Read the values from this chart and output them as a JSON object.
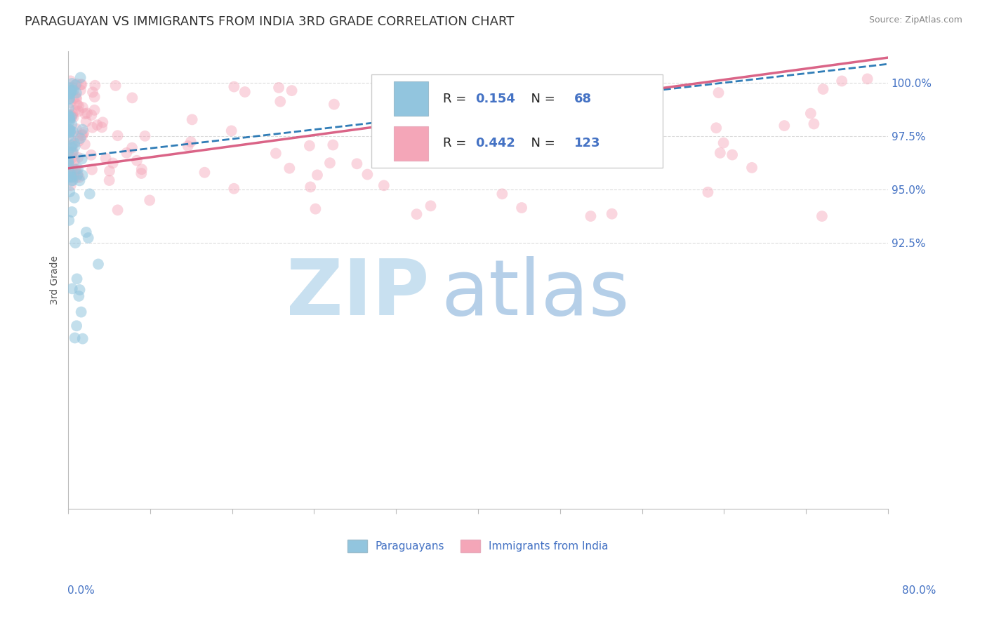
{
  "title": "PARAGUAYAN VS IMMIGRANTS FROM INDIA 3RD GRADE CORRELATION CHART",
  "source_text": "Source: ZipAtlas.com",
  "blue_label": "Paraguayans",
  "pink_label": "Immigrants from India",
  "blue_color": "#92c5de",
  "pink_color": "#f4a6b8",
  "blue_trend_color": "#1a6faf",
  "pink_trend_color": "#d6537a",
  "blue_R": 0.154,
  "blue_N": 68,
  "pink_R": 0.442,
  "pink_N": 123,
  "xlim": [
    0.0,
    80.0
  ],
  "ylim": [
    80.0,
    101.5
  ],
  "ytick_vals": [
    92.5,
    95.0,
    97.5,
    100.0
  ],
  "watermark_zip_color": "#c8e0f0",
  "watermark_atlas_color": "#b5cfe8",
  "background_color": "#ffffff",
  "title_color": "#333333",
  "source_color": "#888888",
  "axis_label_color": "#4472c4",
  "grid_color": "#cccccc",
  "scatter_size": 130,
  "scatter_alpha_blue": 0.55,
  "scatter_alpha_pink": 0.45,
  "blue_trend_intercept": 96.5,
  "blue_trend_slope": 0.055,
  "pink_trend_intercept": 96.0,
  "pink_trend_slope": 0.065
}
